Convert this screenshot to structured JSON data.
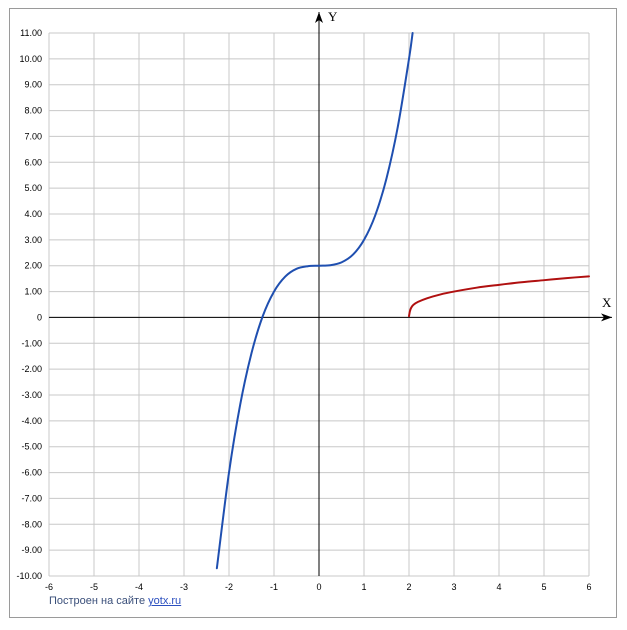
{
  "chart_data": {
    "type": "line",
    "xlabel": "X",
    "ylabel": "Y",
    "xlim": [
      -6,
      6
    ],
    "ylim": [
      -10,
      11
    ],
    "x_ticks": [
      "-6",
      "-5",
      "-4",
      "-3",
      "-2",
      "-1",
      "0",
      "1",
      "2",
      "3",
      "4",
      "5",
      "6"
    ],
    "y_ticks": [
      "11.00",
      "10.00",
      "9.00",
      "8.00",
      "7.00",
      "6.00",
      "5.00",
      "4.00",
      "3.00",
      "2.00",
      "1.00",
      "0",
      "-1.00",
      "-2.00",
      "-3.00",
      "-4.00",
      "-5.00",
      "-6.00",
      "-7.00",
      "-8.00",
      "-9.00",
      "-10.00"
    ],
    "grid": true,
    "series": [
      {
        "color": "#1f4fb0",
        "x": [
          -2.27,
          -2.0,
          -1.75,
          -1.5,
          -1.25,
          -1.0,
          -0.75,
          -0.5,
          -0.25,
          0,
          0.25,
          0.5,
          0.75,
          1.0,
          1.25,
          1.5,
          1.75,
          2.0,
          2.08
        ],
        "y": [
          -9.7,
          -6.0,
          -3.36,
          -1.38,
          0.05,
          1.0,
          1.58,
          1.88,
          1.98,
          2.0,
          2.02,
          2.13,
          2.42,
          3.0,
          3.95,
          5.38,
          7.36,
          10.0,
          11.0
        ]
      },
      {
        "color": "#b01010",
        "x": [
          2.0,
          2.02,
          2.05,
          2.1,
          2.2,
          2.4,
          2.7,
          3.0,
          3.5,
          4.0,
          4.5,
          5.0,
          5.5,
          6.0
        ],
        "y": [
          0.05,
          0.24,
          0.38,
          0.49,
          0.6,
          0.74,
          0.89,
          1.0,
          1.15,
          1.26,
          1.36,
          1.44,
          1.52,
          1.59
        ]
      }
    ]
  },
  "footer": {
    "text": "Построен на сайте ",
    "link": "yotx.ru"
  }
}
